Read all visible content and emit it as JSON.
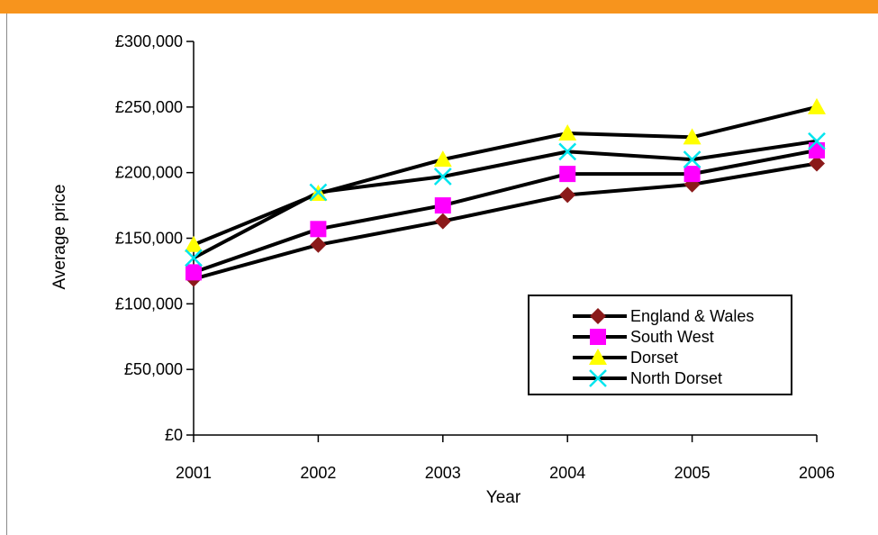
{
  "chart_data": {
    "type": "line",
    "categories": [
      "2001",
      "2002",
      "2003",
      "2004",
      "2005",
      "2006"
    ],
    "series": [
      {
        "name": "England & Wales",
        "marker": "diamond",
        "marker_color": "#8b1a1a",
        "values": [
          119000,
          145000,
          163000,
          183000,
          191000,
          207000
        ]
      },
      {
        "name": "South West",
        "marker": "square",
        "marker_color": "#ff00ff",
        "values": [
          124000,
          157000,
          175000,
          199000,
          199000,
          217000
        ]
      },
      {
        "name": "Dorset",
        "marker": "triangle",
        "marker_color": "#ffff00",
        "values": [
          145000,
          184000,
          210000,
          230000,
          227000,
          250000
        ]
      },
      {
        "name": "North Dorset",
        "marker": "x",
        "marker_color": "#00e5ee",
        "values": [
          135000,
          185000,
          197000,
          216000,
          210000,
          224000
        ]
      }
    ],
    "yticks": [
      "£0",
      "£50,000",
      "£100,000",
      "£150,000",
      "£200,000",
      "£250,000",
      "£300,000"
    ],
    "ylim": [
      0,
      300000
    ],
    "xlabel": "Year",
    "ylabel": "Average price",
    "grid": false,
    "legend": "bottom-right",
    "line_color": "#000000",
    "accent_color": "#f7941d"
  }
}
